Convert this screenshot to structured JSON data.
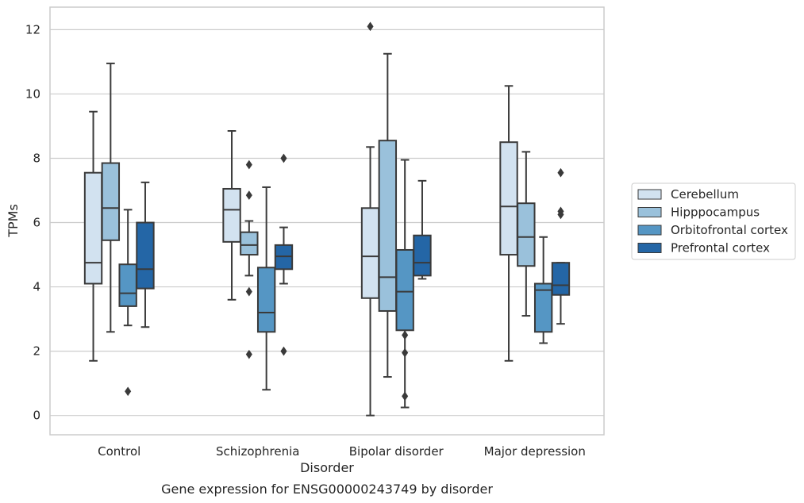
{
  "caption": "Gene expression for ENSG00000243749 by disorder",
  "colors": {
    "Cerebellum": "#d2e2f0",
    "Hipppocampus": "#9ac1db",
    "Orbitofrontal cortex": "#5596c4",
    "Prefrontal cortex": "#2466a6",
    "line": "#3a3a3a",
    "grid": "#cccccc",
    "frame": "#cccccc"
  },
  "chart_data": {
    "type": "box",
    "xlabel": "Disorder",
    "ylabel": "TPMs",
    "ylim": [
      -0.6,
      12.7
    ],
    "yticks": [
      0,
      2,
      4,
      6,
      8,
      10,
      12
    ],
    "grid": "horizontal",
    "legend_position": "right",
    "categories": [
      "Control",
      "Schizophrenia",
      "Bipolar disorder",
      "Major depression"
    ],
    "series": [
      {
        "name": "Cerebellum",
        "boxes": [
          {
            "whislo": 1.7,
            "q1": 4.1,
            "med": 4.75,
            "q3": 7.55,
            "whishi": 9.45,
            "fliers": []
          },
          {
            "whislo": 3.6,
            "q1": 5.4,
            "med": 6.4,
            "q3": 7.05,
            "whishi": 8.85,
            "fliers": []
          },
          {
            "whislo": 0.0,
            "q1": 3.65,
            "med": 4.95,
            "q3": 6.45,
            "whishi": 8.35,
            "fliers": [
              12.1
            ]
          },
          {
            "whislo": 1.7,
            "q1": 5.0,
            "med": 6.5,
            "q3": 8.5,
            "whishi": 10.25,
            "fliers": []
          }
        ]
      },
      {
        "name": "Hipppocampus",
        "boxes": [
          {
            "whislo": 2.6,
            "q1": 5.45,
            "med": 6.45,
            "q3": 7.85,
            "whishi": 10.95,
            "fliers": []
          },
          {
            "whislo": 4.35,
            "q1": 5.0,
            "med": 5.3,
            "q3": 5.7,
            "whishi": 6.05,
            "fliers": [
              7.8,
              6.85,
              3.85,
              1.9
            ]
          },
          {
            "whislo": 1.2,
            "q1": 3.25,
            "med": 4.3,
            "q3": 8.55,
            "whishi": 11.25,
            "fliers": []
          },
          {
            "whislo": 3.1,
            "q1": 4.65,
            "med": 5.55,
            "q3": 6.6,
            "whishi": 8.2,
            "fliers": []
          }
        ]
      },
      {
        "name": "Orbitofrontal cortex",
        "boxes": [
          {
            "whislo": 2.8,
            "q1": 3.4,
            "med": 3.8,
            "q3": 4.7,
            "whishi": 6.4,
            "fliers": [
              0.75
            ]
          },
          {
            "whislo": 0.8,
            "q1": 2.6,
            "med": 3.2,
            "q3": 4.6,
            "whishi": 7.1,
            "fliers": []
          },
          {
            "whislo": 0.25,
            "q1": 2.65,
            "med": 3.85,
            "q3": 5.15,
            "whishi": 7.95,
            "fliers": [
              2.5,
              1.95,
              0.6
            ]
          },
          {
            "whislo": 2.25,
            "q1": 2.6,
            "med": 3.9,
            "q3": 4.1,
            "whishi": 5.55,
            "fliers": []
          }
        ]
      },
      {
        "name": "Prefrontal cortex",
        "boxes": [
          {
            "whislo": 2.75,
            "q1": 3.95,
            "med": 4.55,
            "q3": 6.0,
            "whishi": 7.25,
            "fliers": []
          },
          {
            "whislo": 4.1,
            "q1": 4.55,
            "med": 4.95,
            "q3": 5.3,
            "whishi": 5.85,
            "fliers": [
              8.0,
              2.0
            ]
          },
          {
            "whislo": 4.25,
            "q1": 4.35,
            "med": 4.75,
            "q3": 5.6,
            "whishi": 7.3,
            "fliers": []
          },
          {
            "whislo": 2.85,
            "q1": 3.75,
            "med": 4.05,
            "q3": 4.75,
            "whishi": 4.75,
            "fliers": [
              7.55,
              6.35,
              6.25
            ]
          }
        ]
      }
    ]
  }
}
